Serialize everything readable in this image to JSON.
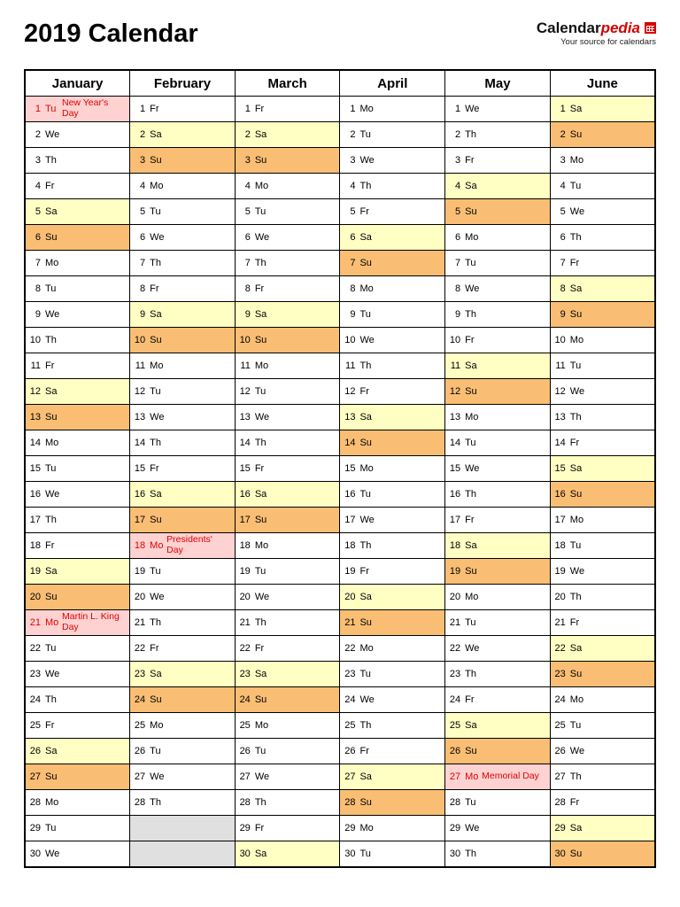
{
  "header": {
    "title": "2019 Calendar",
    "logo": {
      "black": "Calendar",
      "red": "pedia",
      "tagline": "Your source for calendars"
    }
  },
  "colors": {
    "saturday_bg": "#FFFFC4",
    "sunday_bg": "#F9BE74",
    "holiday_bg": "#FFD2D2",
    "holiday_text": "#E00000",
    "empty_bg": "#E0E0E0",
    "logo_red": "#D40000",
    "border": "#000000"
  },
  "calendar": {
    "visible_rows": 30,
    "months": [
      {
        "name": "January",
        "days": [
          [
            1,
            "Tu",
            "New Year's Day"
          ],
          [
            2,
            "We"
          ],
          [
            3,
            "Th"
          ],
          [
            4,
            "Fr"
          ],
          [
            5,
            "Sa"
          ],
          [
            6,
            "Su"
          ],
          [
            7,
            "Mo"
          ],
          [
            8,
            "Tu"
          ],
          [
            9,
            "We"
          ],
          [
            10,
            "Th"
          ],
          [
            11,
            "Fr"
          ],
          [
            12,
            "Sa"
          ],
          [
            13,
            "Su"
          ],
          [
            14,
            "Mo"
          ],
          [
            15,
            "Tu"
          ],
          [
            16,
            "We"
          ],
          [
            17,
            "Th"
          ],
          [
            18,
            "Fr"
          ],
          [
            19,
            "Sa"
          ],
          [
            20,
            "Su"
          ],
          [
            21,
            "Mo",
            "Martin L. King Day"
          ],
          [
            22,
            "Tu"
          ],
          [
            23,
            "We"
          ],
          [
            24,
            "Th"
          ],
          [
            25,
            "Fr"
          ],
          [
            26,
            "Sa"
          ],
          [
            27,
            "Su"
          ],
          [
            28,
            "Mo"
          ],
          [
            29,
            "Tu"
          ],
          [
            30,
            "We"
          ]
        ]
      },
      {
        "name": "February",
        "days": [
          [
            1,
            "Fr"
          ],
          [
            2,
            "Sa"
          ],
          [
            3,
            "Su"
          ],
          [
            4,
            "Mo"
          ],
          [
            5,
            "Tu"
          ],
          [
            6,
            "We"
          ],
          [
            7,
            "Th"
          ],
          [
            8,
            "Fr"
          ],
          [
            9,
            "Sa"
          ],
          [
            10,
            "Su"
          ],
          [
            11,
            "Mo"
          ],
          [
            12,
            "Tu"
          ],
          [
            13,
            "We"
          ],
          [
            14,
            "Th"
          ],
          [
            15,
            "Fr"
          ],
          [
            16,
            "Sa"
          ],
          [
            17,
            "Su"
          ],
          [
            18,
            "Mo",
            "Presidents' Day"
          ],
          [
            19,
            "Tu"
          ],
          [
            20,
            "We"
          ],
          [
            21,
            "Th"
          ],
          [
            22,
            "Fr"
          ],
          [
            23,
            "Sa"
          ],
          [
            24,
            "Su"
          ],
          [
            25,
            "Mo"
          ],
          [
            26,
            "Tu"
          ],
          [
            27,
            "We"
          ],
          [
            28,
            "Th"
          ],
          null,
          null
        ]
      },
      {
        "name": "March",
        "days": [
          [
            1,
            "Fr"
          ],
          [
            2,
            "Sa"
          ],
          [
            3,
            "Su"
          ],
          [
            4,
            "Mo"
          ],
          [
            5,
            "Tu"
          ],
          [
            6,
            "We"
          ],
          [
            7,
            "Th"
          ],
          [
            8,
            "Fr"
          ],
          [
            9,
            "Sa"
          ],
          [
            10,
            "Su"
          ],
          [
            11,
            "Mo"
          ],
          [
            12,
            "Tu"
          ],
          [
            13,
            "We"
          ],
          [
            14,
            "Th"
          ],
          [
            15,
            "Fr"
          ],
          [
            16,
            "Sa"
          ],
          [
            17,
            "Su"
          ],
          [
            18,
            "Mo"
          ],
          [
            19,
            "Tu"
          ],
          [
            20,
            "We"
          ],
          [
            21,
            "Th"
          ],
          [
            22,
            "Fr"
          ],
          [
            23,
            "Sa"
          ],
          [
            24,
            "Su"
          ],
          [
            25,
            "Mo"
          ],
          [
            26,
            "Tu"
          ],
          [
            27,
            "We"
          ],
          [
            28,
            "Th"
          ],
          [
            29,
            "Fr"
          ],
          [
            30,
            "Sa"
          ]
        ]
      },
      {
        "name": "April",
        "days": [
          [
            1,
            "Mo"
          ],
          [
            2,
            "Tu"
          ],
          [
            3,
            "We"
          ],
          [
            4,
            "Th"
          ],
          [
            5,
            "Fr"
          ],
          [
            6,
            "Sa"
          ],
          [
            7,
            "Su"
          ],
          [
            8,
            "Mo"
          ],
          [
            9,
            "Tu"
          ],
          [
            10,
            "We"
          ],
          [
            11,
            "Th"
          ],
          [
            12,
            "Fr"
          ],
          [
            13,
            "Sa"
          ],
          [
            14,
            "Su"
          ],
          [
            15,
            "Mo"
          ],
          [
            16,
            "Tu"
          ],
          [
            17,
            "We"
          ],
          [
            18,
            "Th"
          ],
          [
            19,
            "Fr"
          ],
          [
            20,
            "Sa"
          ],
          [
            21,
            "Su"
          ],
          [
            22,
            "Mo"
          ],
          [
            23,
            "Tu"
          ],
          [
            24,
            "We"
          ],
          [
            25,
            "Th"
          ],
          [
            26,
            "Fr"
          ],
          [
            27,
            "Sa"
          ],
          [
            28,
            "Su"
          ],
          [
            29,
            "Mo"
          ],
          [
            30,
            "Tu"
          ]
        ]
      },
      {
        "name": "May",
        "days": [
          [
            1,
            "We"
          ],
          [
            2,
            "Th"
          ],
          [
            3,
            "Fr"
          ],
          [
            4,
            "Sa"
          ],
          [
            5,
            "Su"
          ],
          [
            6,
            "Mo"
          ],
          [
            7,
            "Tu"
          ],
          [
            8,
            "We"
          ],
          [
            9,
            "Th"
          ],
          [
            10,
            "Fr"
          ],
          [
            11,
            "Sa"
          ],
          [
            12,
            "Su"
          ],
          [
            13,
            "Mo"
          ],
          [
            14,
            "Tu"
          ],
          [
            15,
            "We"
          ],
          [
            16,
            "Th"
          ],
          [
            17,
            "Fr"
          ],
          [
            18,
            "Sa"
          ],
          [
            19,
            "Su"
          ],
          [
            20,
            "Mo"
          ],
          [
            21,
            "Tu"
          ],
          [
            22,
            "We"
          ],
          [
            23,
            "Th"
          ],
          [
            24,
            "Fr"
          ],
          [
            25,
            "Sa"
          ],
          [
            26,
            "Su"
          ],
          [
            27,
            "Mo",
            "Memorial Day"
          ],
          [
            28,
            "Tu"
          ],
          [
            29,
            "We"
          ],
          [
            30,
            "Th"
          ]
        ]
      },
      {
        "name": "June",
        "days": [
          [
            1,
            "Sa"
          ],
          [
            2,
            "Su"
          ],
          [
            3,
            "Mo"
          ],
          [
            4,
            "Tu"
          ],
          [
            5,
            "We"
          ],
          [
            6,
            "Th"
          ],
          [
            7,
            "Fr"
          ],
          [
            8,
            "Sa"
          ],
          [
            9,
            "Su"
          ],
          [
            10,
            "Mo"
          ],
          [
            11,
            "Tu"
          ],
          [
            12,
            "We"
          ],
          [
            13,
            "Th"
          ],
          [
            14,
            "Fr"
          ],
          [
            15,
            "Sa"
          ],
          [
            16,
            "Su"
          ],
          [
            17,
            "Mo"
          ],
          [
            18,
            "Tu"
          ],
          [
            19,
            "We"
          ],
          [
            20,
            "Th"
          ],
          [
            21,
            "Fr"
          ],
          [
            22,
            "Sa"
          ],
          [
            23,
            "Su"
          ],
          [
            24,
            "Mo"
          ],
          [
            25,
            "Tu"
          ],
          [
            26,
            "We"
          ],
          [
            27,
            "Th"
          ],
          [
            28,
            "Fr"
          ],
          [
            29,
            "Sa"
          ],
          [
            30,
            "Su"
          ]
        ]
      }
    ]
  }
}
